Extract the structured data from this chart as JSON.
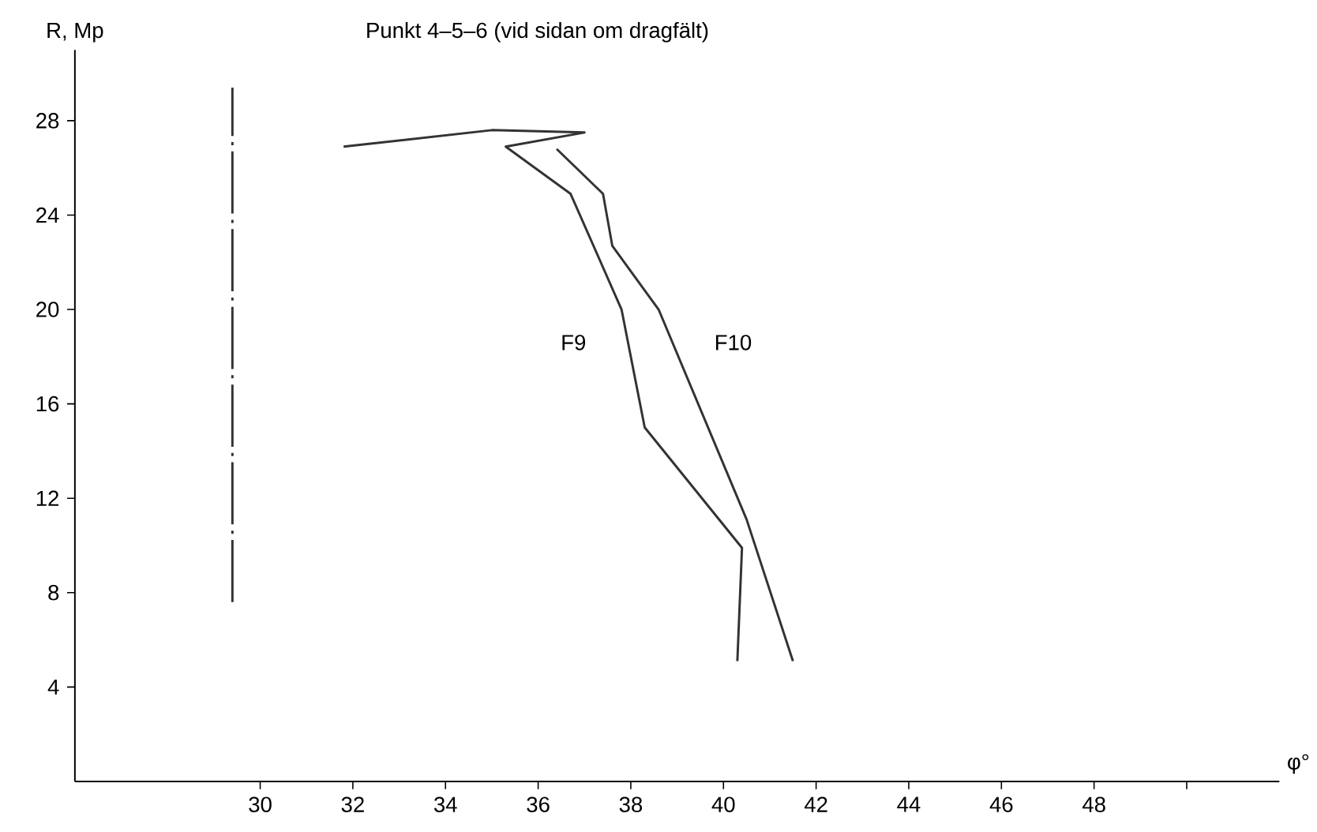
{
  "chart_data": {
    "type": "line",
    "title": "Punkt 4–5–6 (vid sidan om dragfält)",
    "xlabel": "φ°",
    "ylabel": "R, Mp",
    "xlim": [
      26,
      52
    ],
    "ylim": [
      0,
      31
    ],
    "xticks": [
      30,
      32,
      34,
      36,
      38,
      40,
      42,
      44,
      46,
      48,
      {
        "value": 50,
        "label": null
      }
    ],
    "yticks": [
      4,
      8,
      12,
      16,
      20,
      24,
      28
    ],
    "marker": "none",
    "line_style": "solid",
    "series": [
      {
        "name": "F9",
        "color": "#333333",
        "x": [
          40.3,
          40.4,
          38.3,
          37.8,
          36.7,
          35.3,
          37.0,
          35.0,
          31.8
        ],
        "values": [
          5.1,
          9.9,
          15.0,
          20.0,
          24.9,
          26.9,
          27.5,
          27.6,
          26.9
        ]
      },
      {
        "name": "F10",
        "color": "#333333",
        "x": [
          41.5,
          40.5,
          38.6,
          37.6,
          37.4,
          36.4
        ],
        "values": [
          5.1,
          11.1,
          20.0,
          22.7,
          24.9,
          26.8
        ]
      },
      {
        "color": "#333333",
        "line_style": "dashdot",
        "x": [
          29.4,
          29.4
        ],
        "values": [
          7.6,
          29.4
        ]
      }
    ]
  }
}
